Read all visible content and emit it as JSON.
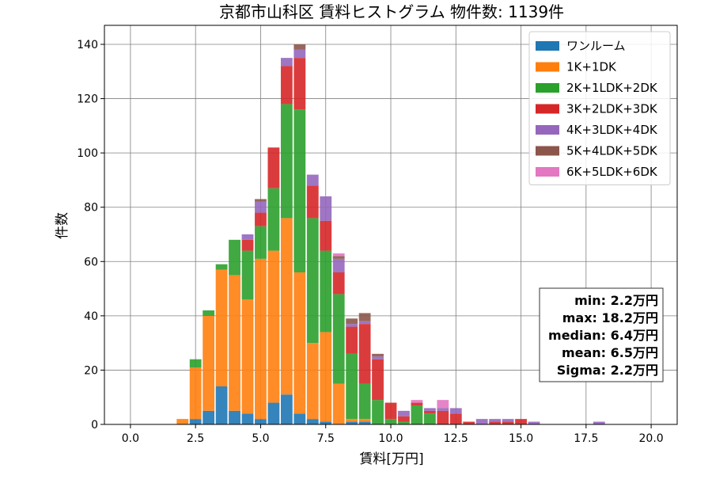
{
  "chart_data": {
    "type": "bar",
    "stacked": true,
    "title": "京都市山科区 賃料ヒストグラム  物件数: 1139件",
    "xlabel": "賃料[万円]",
    "ylabel": "件数",
    "xlim": [
      -1.0,
      21.0
    ],
    "ylim": [
      0,
      147
    ],
    "xticks": [
      0.0,
      2.5,
      5.0,
      7.5,
      10.0,
      12.5,
      15.0,
      17.5,
      20.0
    ],
    "xtick_labels": [
      "0.0",
      "2.5",
      "5.0",
      "7.5",
      "10.0",
      "12.5",
      "15.0",
      "17.5",
      "20.0"
    ],
    "yticks": [
      0,
      20,
      40,
      60,
      80,
      100,
      120,
      140
    ],
    "ytick_labels": [
      "0",
      "20",
      "40",
      "60",
      "80",
      "100",
      "120",
      "140"
    ],
    "grid": true,
    "legend_position": "top-right",
    "bin_centers": [
      2.0,
      2.5,
      3.0,
      3.5,
      4.0,
      4.5,
      5.0,
      5.5,
      6.0,
      6.5,
      7.0,
      7.5,
      8.0,
      8.5,
      9.0,
      9.5,
      10.0,
      10.5,
      11.0,
      11.5,
      12.0,
      12.5,
      13.0,
      13.5,
      14.0,
      14.5,
      15.0,
      15.5,
      16.0,
      16.5,
      17.0,
      17.5,
      18.0
    ],
    "bin_width": 0.5,
    "series": [
      {
        "name": "ワンルーム",
        "color": "#1f77b4",
        "values": [
          0,
          2,
          5,
          14,
          5,
          4,
          2,
          8,
          11,
          4,
          2,
          1,
          0,
          1,
          1,
          0,
          0,
          0,
          0,
          0,
          0,
          0,
          0,
          0,
          0,
          0,
          0,
          0,
          0,
          0,
          0,
          0,
          0
        ]
      },
      {
        "name": "1K+1DK",
        "color": "#ff7f0e",
        "values": [
          2,
          19,
          35,
          43,
          50,
          42,
          59,
          56,
          65,
          52,
          28,
          33,
          15,
          1,
          1,
          0,
          0,
          0,
          0,
          0,
          0,
          0,
          0,
          0,
          0,
          0,
          0,
          0,
          0,
          0,
          0,
          0,
          0
        ]
      },
      {
        "name": "2K+1LDK+2DK",
        "color": "#2ca02c",
        "values": [
          0,
          3,
          2,
          2,
          13,
          18,
          12,
          23,
          42,
          60,
          46,
          30,
          33,
          24,
          13,
          9,
          2,
          1,
          7,
          4,
          0,
          0,
          0,
          0,
          0,
          0,
          0,
          0,
          0,
          0,
          0,
          0,
          0
        ]
      },
      {
        "name": "3K+2LDK+3DK",
        "color": "#d62728",
        "values": [
          0,
          0,
          0,
          0,
          0,
          4,
          5,
          15,
          14,
          19,
          12,
          11,
          8,
          10,
          22,
          15,
          6,
          2,
          1,
          1,
          5,
          4,
          1,
          0,
          1,
          1,
          2,
          0,
          0,
          0,
          0,
          0,
          0
        ]
      },
      {
        "name": "4K+3LDK+4DK",
        "color": "#9467bd",
        "values": [
          0,
          0,
          0,
          0,
          0,
          2,
          4,
          0,
          3,
          3,
          4,
          9,
          5,
          1,
          1,
          1,
          0,
          2,
          0,
          1,
          1,
          2,
          0,
          2,
          1,
          1,
          0,
          1,
          0,
          0,
          0,
          0,
          1
        ]
      },
      {
        "name": "5K+4LDK+5DK",
        "color": "#8c564b",
        "values": [
          0,
          0,
          0,
          0,
          0,
          0,
          1,
          0,
          0,
          2,
          0,
          0,
          1,
          2,
          3,
          1,
          0,
          0,
          0,
          0,
          0,
          0,
          0,
          0,
          0,
          0,
          0,
          0,
          0,
          0,
          0,
          0,
          0
        ]
      },
      {
        "name": "6K+5LDK+6DK",
        "color": "#e377c2",
        "values": [
          0,
          0,
          0,
          0,
          0,
          0,
          0,
          0,
          0,
          0,
          0,
          0,
          1,
          0,
          0,
          0,
          0,
          0,
          1,
          0,
          3,
          0,
          0,
          0,
          0,
          0,
          0,
          0,
          0,
          0,
          0,
          0,
          0
        ]
      }
    ],
    "stats_box": {
      "lines": [
        "min: 2.2万円",
        "max: 18.2万円",
        "median: 6.4万円",
        "mean: 6.5万円",
        "Sigma: 2.2万円"
      ],
      "position": "right"
    }
  }
}
